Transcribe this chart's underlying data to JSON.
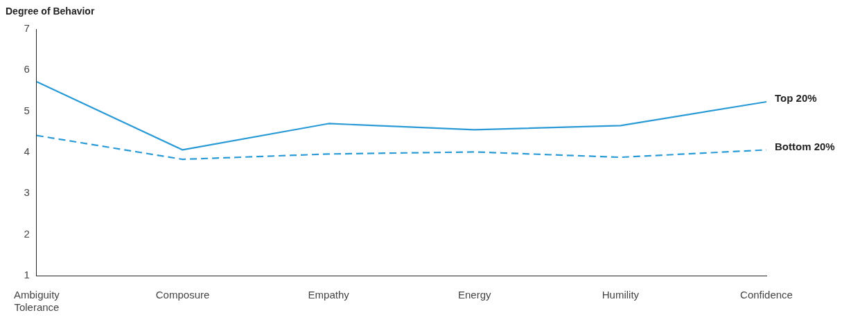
{
  "chart_data": {
    "type": "line",
    "ylabel": "Degree of Behavior",
    "categories": [
      "Ambiguity Tolerance",
      "Composure",
      "Empathy",
      "Energy",
      "Humility",
      "Confidence"
    ],
    "series": [
      {
        "name": "Top 20%",
        "color": "#2a9ad6",
        "line_style": "solid",
        "values": [
          5.72,
          4.06,
          4.7,
          4.55,
          4.65,
          5.23
        ]
      },
      {
        "name": "Bottom 20%",
        "color": "#2a9ad6",
        "line_style": "dashed",
        "values": [
          4.41,
          3.83,
          3.96,
          4.01,
          3.88,
          4.06
        ]
      }
    ],
    "ylim": [
      1,
      7
    ],
    "yticks": [
      1,
      2,
      3,
      4,
      5,
      6,
      7
    ],
    "grid": false,
    "legend": false,
    "marker": "none"
  }
}
